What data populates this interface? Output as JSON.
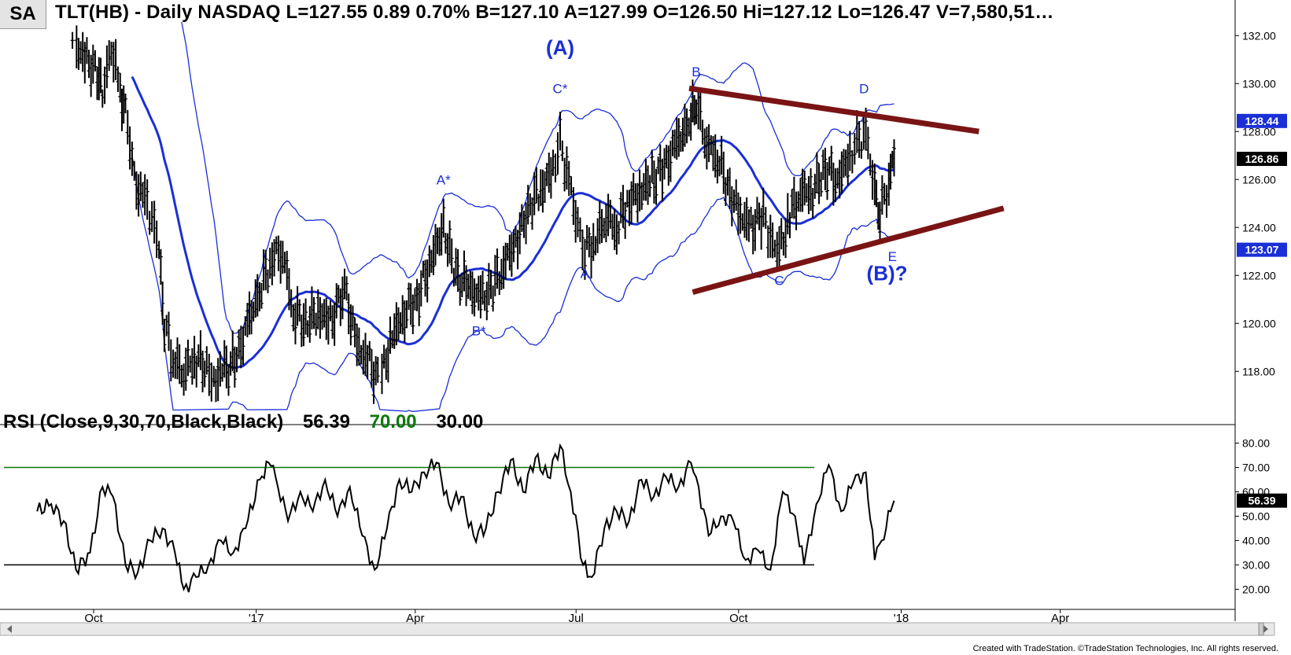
{
  "header": {
    "symbol_badge": "SA",
    "title": "TLT(HB) - Daily  NASDAQ  L=127.55  0.89  0.70%  B=127.10  A=127.99  O=126.50  Hi=127.12  Lo=126.47  V=7,580,51…"
  },
  "rsi_header": {
    "label": "RSI (Close,9,30,70,Black,Black)",
    "value": "56.39",
    "upper": "70.00",
    "lower": "30.00"
  },
  "footer": "Created with TradeStation. ©TradeStation Technologies, Inc. All rights reserved.",
  "colors": {
    "price_bar": "#000000",
    "bands": "#1a2fd6",
    "trendline": "#7a1414",
    "rsi_upper": "#0a7a0a",
    "rsi_lower": "#000000",
    "label_box": "#1a2fd6"
  },
  "chart_data": [
    {
      "type": "ohlc",
      "title": "TLT(HB) - Daily",
      "ylim": [
        116.5,
        132.5
      ],
      "yticks": [
        "132.00",
        "130.00",
        "128.00",
        "126.00",
        "124.00",
        "122.00",
        "120.00",
        "118.00"
      ],
      "xticks": [
        "Oct",
        "'17",
        "Apr",
        "Jul",
        "Oct",
        "'18",
        "Apr"
      ],
      "price_labels": [
        {
          "text": "128.44",
          "value": 128.44
        },
        {
          "text": "126.86",
          "value": 126.86
        },
        {
          "text": "123.07",
          "value": 123.07
        }
      ],
      "close_path": [
        [
          "2016-09-20",
          131.8
        ],
        [
          "2016-09-27",
          131.0
        ],
        [
          "2016-10-04",
          130.5
        ],
        [
          "2016-10-07",
          129.5
        ],
        [
          "2016-10-12",
          131.6
        ],
        [
          "2016-10-17",
          129.6
        ],
        [
          "2016-10-20",
          129.0
        ],
        [
          "2016-10-25",
          126.0
        ],
        [
          "2016-10-31",
          125.0
        ],
        [
          "2016-11-04",
          124.5
        ],
        [
          "2016-11-08",
          123.0
        ],
        [
          "2016-11-11",
          120.0
        ],
        [
          "2016-11-16",
          118.5
        ],
        [
          "2016-11-22",
          118.0
        ],
        [
          "2016-11-28",
          118.6
        ],
        [
          "2016-12-05",
          118.2
        ],
        [
          "2016-12-09",
          117.6
        ],
        [
          "2016-12-15",
          118.0
        ],
        [
          "2016-12-22",
          118.5
        ],
        [
          "2016-12-28",
          120.0
        ],
        [
          "2017-01-05",
          121.5
        ],
        [
          "2017-01-11",
          122.8
        ],
        [
          "2017-01-17",
          123.0
        ],
        [
          "2017-01-23",
          120.5
        ],
        [
          "2017-01-30",
          120.0
        ],
        [
          "2017-02-06",
          120.5
        ],
        [
          "2017-02-13",
          120.0
        ],
        [
          "2017-02-21",
          121.5
        ],
        [
          "2017-02-28",
          119.0
        ],
        [
          "2017-03-06",
          118.5
        ],
        [
          "2017-03-13",
          117.5
        ],
        [
          "2017-03-20",
          119.5
        ],
        [
          "2017-03-27",
          120.5
        ],
        [
          "2017-04-03",
          121.0
        ],
        [
          "2017-04-10",
          122.5
        ],
        [
          "2017-04-18",
          124.0
        ],
        [
          "2017-04-25",
          122.0
        ],
        [
          "2017-05-02",
          121.5
        ],
        [
          "2017-05-09",
          121.0
        ],
        [
          "2017-05-16",
          121.5
        ],
        [
          "2017-05-22",
          122.5
        ],
        [
          "2017-05-30",
          123.5
        ],
        [
          "2017-06-06",
          125.0
        ],
        [
          "2017-06-12",
          125.5
        ],
        [
          "2017-06-19",
          126.5
        ],
        [
          "2017-06-23",
          127.5
        ],
        [
          "2017-06-28",
          126.0
        ],
        [
          "2017-07-03",
          124.0
        ],
        [
          "2017-07-07",
          123.0
        ],
        [
          "2017-07-13",
          123.5
        ],
        [
          "2017-07-19",
          124.5
        ],
        [
          "2017-07-25",
          124.0
        ],
        [
          "2017-07-31",
          125.0
        ],
        [
          "2017-08-07",
          125.5
        ],
        [
          "2017-08-14",
          126.0
        ],
        [
          "2017-08-21",
          126.5
        ],
        [
          "2017-08-28",
          127.5
        ],
        [
          "2017-09-05",
          128.5
        ],
        [
          "2017-09-08",
          129.2
        ],
        [
          "2017-09-14",
          127.5
        ],
        [
          "2017-09-20",
          127.0
        ],
        [
          "2017-09-27",
          125.5
        ],
        [
          "2017-10-03",
          124.5
        ],
        [
          "2017-10-09",
          124.0
        ],
        [
          "2017-10-16",
          124.5
        ],
        [
          "2017-10-20",
          123.5
        ],
        [
          "2017-10-25",
          123.0
        ],
        [
          "2017-10-31",
          124.5
        ],
        [
          "2017-11-06",
          125.5
        ],
        [
          "2017-11-13",
          125.5
        ],
        [
          "2017-11-20",
          126.5
        ],
        [
          "2017-11-27",
          126.0
        ],
        [
          "2017-12-04",
          127.0
        ],
        [
          "2017-12-08",
          127.5
        ],
        [
          "2017-12-13",
          128.0
        ],
        [
          "2017-12-18",
          125.5
        ],
        [
          "2017-12-21",
          124.5
        ],
        [
          "2017-12-26",
          126.0
        ],
        [
          "2017-12-29",
          126.9
        ]
      ],
      "wave_labels": [
        {
          "text": "(A)",
          "date": "2017-06-23",
          "value": 131.2,
          "big": true
        },
        {
          "text": "C*",
          "date": "2017-06-23",
          "value": 129.6
        },
        {
          "text": "A*",
          "date": "2017-04-18",
          "value": 125.8
        },
        {
          "text": "B*",
          "date": "2017-05-08",
          "value": 119.5
        },
        {
          "text": "A",
          "date": "2017-07-07",
          "value": 121.9
        },
        {
          "text": "B",
          "date": "2017-09-08",
          "value": 130.3
        },
        {
          "text": "C",
          "date": "2017-10-25",
          "value": 121.6
        },
        {
          "text": "D",
          "date": "2017-12-12",
          "value": 129.6
        },
        {
          "text": "E",
          "date": "2017-12-28",
          "value": 122.6
        },
        {
          "text": "(B)?",
          "date": "2017-12-25",
          "value": 121.8,
          "big": true
        }
      ],
      "trendlines": [
        {
          "name": "upper",
          "from": [
            "2017-09-04",
            129.8
          ],
          "to": [
            "2018-02-15",
            128.0
          ]
        },
        {
          "name": "lower",
          "from": [
            "2017-09-06",
            121.3
          ],
          "to": [
            "2018-03-01",
            124.8
          ]
        }
      ]
    },
    {
      "type": "line",
      "title": "RSI (Close,9,30,70,Black,Black)",
      "ylim": [
        14,
        85
      ],
      "yticks": [
        "80.00",
        "70.00",
        "60.00",
        "50.00",
        "40.00",
        "30.00",
        "20.00"
      ],
      "levels": [
        70,
        30
      ],
      "last_value_label": "56.39",
      "values": [
        [
          "2016-08-31",
          52
        ],
        [
          "2016-09-08",
          55
        ],
        [
          "2016-09-15",
          48
        ],
        [
          "2016-09-22",
          28
        ],
        [
          "2016-09-30",
          35
        ],
        [
          "2016-10-07",
          62
        ],
        [
          "2016-10-13",
          58
        ],
        [
          "2016-10-20",
          30
        ],
        [
          "2016-10-27",
          27
        ],
        [
          "2016-11-03",
          40
        ],
        [
          "2016-11-10",
          45
        ],
        [
          "2016-11-17",
          35
        ],
        [
          "2016-11-22",
          20
        ],
        [
          "2016-11-29",
          25
        ],
        [
          "2016-12-06",
          30
        ],
        [
          "2016-12-13",
          40
        ],
        [
          "2016-12-20",
          35
        ],
        [
          "2016-12-27",
          45
        ],
        [
          "2017-01-04",
          65
        ],
        [
          "2017-01-09",
          72
        ],
        [
          "2017-01-13",
          66
        ],
        [
          "2017-01-20",
          48
        ],
        [
          "2017-01-27",
          60
        ],
        [
          "2017-02-03",
          52
        ],
        [
          "2017-02-10",
          65
        ],
        [
          "2017-02-17",
          50
        ],
        [
          "2017-02-24",
          62
        ],
        [
          "2017-03-03",
          42
        ],
        [
          "2017-03-10",
          28
        ],
        [
          "2017-03-17",
          45
        ],
        [
          "2017-03-24",
          65
        ],
        [
          "2017-03-31",
          60
        ],
        [
          "2017-04-07",
          68
        ],
        [
          "2017-04-14",
          72
        ],
        [
          "2017-04-21",
          55
        ],
        [
          "2017-04-28",
          58
        ],
        [
          "2017-05-05",
          42
        ],
        [
          "2017-05-12",
          45
        ],
        [
          "2017-05-19",
          60
        ],
        [
          "2017-05-26",
          73
        ],
        [
          "2017-06-02",
          60
        ],
        [
          "2017-06-09",
          74
        ],
        [
          "2017-06-16",
          66
        ],
        [
          "2017-06-23",
          79
        ],
        [
          "2017-06-29",
          60
        ],
        [
          "2017-07-06",
          30
        ],
        [
          "2017-07-11",
          25
        ],
        [
          "2017-07-18",
          45
        ],
        [
          "2017-07-25",
          52
        ],
        [
          "2017-08-01",
          48
        ],
        [
          "2017-08-08",
          65
        ],
        [
          "2017-08-15",
          58
        ],
        [
          "2017-08-22",
          66
        ],
        [
          "2017-08-29",
          62
        ],
        [
          "2017-09-05",
          72
        ],
        [
          "2017-09-08",
          66
        ],
        [
          "2017-09-15",
          42
        ],
        [
          "2017-09-22",
          50
        ],
        [
          "2017-09-29",
          48
        ],
        [
          "2017-10-06",
          32
        ],
        [
          "2017-10-13",
          36
        ],
        [
          "2017-10-20",
          28
        ],
        [
          "2017-10-27",
          60
        ],
        [
          "2017-11-03",
          50
        ],
        [
          "2017-11-08",
          30
        ],
        [
          "2017-11-15",
          55
        ],
        [
          "2017-11-22",
          71
        ],
        [
          "2017-11-29",
          52
        ],
        [
          "2017-12-06",
          64
        ],
        [
          "2017-12-13",
          68
        ],
        [
          "2017-12-18",
          32
        ],
        [
          "2017-12-22",
          40
        ],
        [
          "2017-12-27",
          52
        ],
        [
          "2017-12-29",
          56.39
        ]
      ]
    }
  ]
}
